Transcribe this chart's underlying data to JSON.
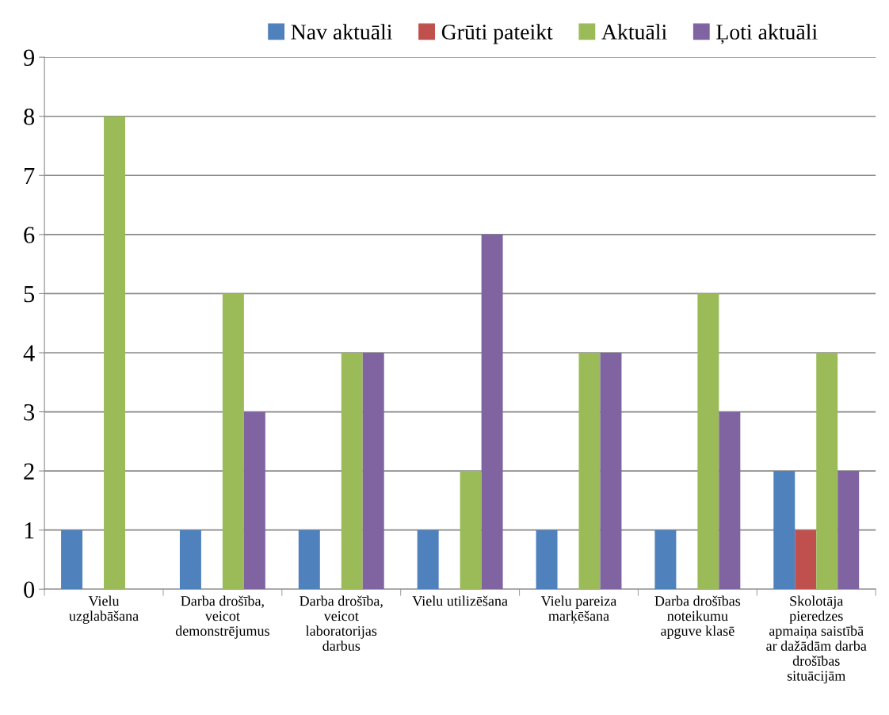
{
  "chart_data": {
    "type": "bar",
    "categories": [
      "Vielu\nuzglabāšana",
      "Darba drošība,\nveicot\ndemonstrējumus",
      "Darba drošība,\nveicot\nlaboratorijas\ndarbus",
      "Vielu utilizēšana",
      "Vielu pareiza\nmarķēšana",
      "Darba drošības\nnoteikumu\napguve klasē",
      "Skolotāja\npieredzes\napmaiņa saistībā\nar dažādām darba\ndrošības\nsituācijām"
    ],
    "series": [
      {
        "name": "Nav aktuāli",
        "color": "#4f81bd",
        "values": [
          1,
          1,
          1,
          1,
          1,
          1,
          2
        ]
      },
      {
        "name": "Grūti pateikt",
        "color": "#c0504d",
        "values": [
          0,
          0,
          0,
          0,
          0,
          0,
          1
        ]
      },
      {
        "name": "Aktuāli",
        "color": "#9bbb59",
        "values": [
          8,
          5,
          4,
          2,
          4,
          5,
          4
        ]
      },
      {
        "name": "Ļoti aktuāli",
        "color": "#8064a2",
        "values": [
          0,
          3,
          4,
          6,
          4,
          3,
          2
        ]
      }
    ],
    "ylim": [
      0,
      9
    ],
    "yticks": [
      0,
      1,
      2,
      3,
      4,
      5,
      6,
      7,
      8,
      9
    ],
    "grid": "y",
    "legend": "top"
  }
}
